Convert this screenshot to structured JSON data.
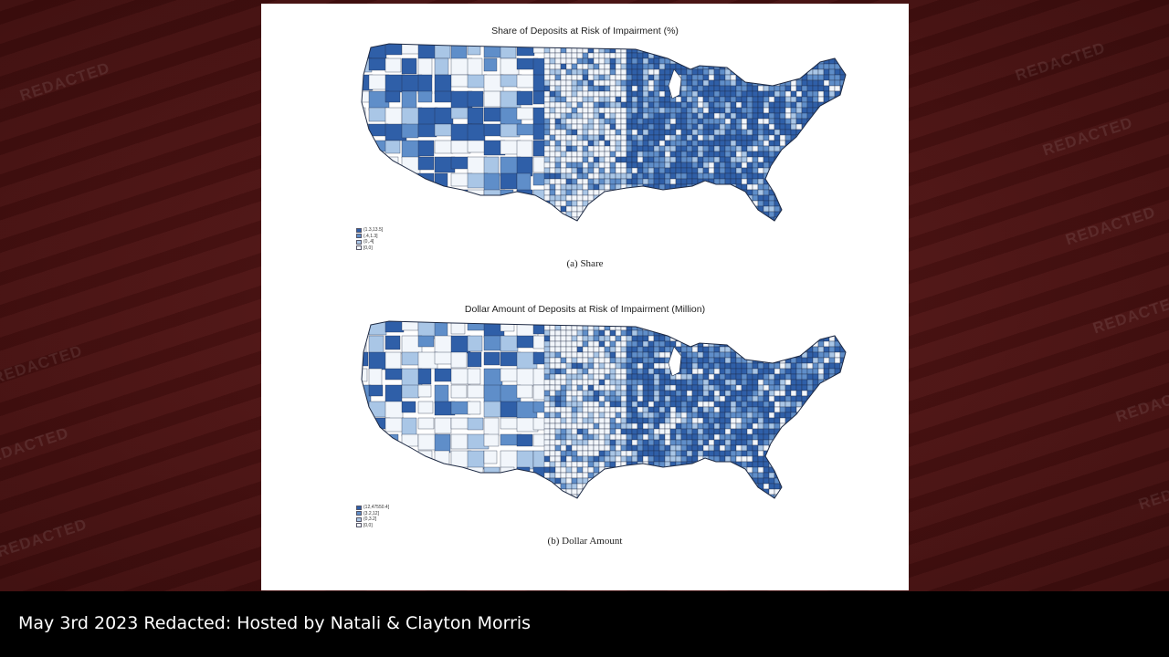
{
  "watermark_text": "REDACTED",
  "colors": {
    "background": "#4a1212",
    "bottom_bar": "#000000",
    "bottom_text": "#ffffff",
    "map_border": "#1e2a44",
    "legend_colors": [
      "#2f5fa8",
      "#5f8ec9",
      "#a9c6e6",
      "#f2f6fb"
    ]
  },
  "figure": {
    "maps": [
      {
        "title": "Share of Deposits at Risk of Impairment (%)",
        "caption": "(a)   Share",
        "legend": [
          "(1.3,13.5]",
          "(.4,1.3]",
          "(0,.4]",
          "[0,0]"
        ]
      },
      {
        "title": "Dollar Amount of Deposits at Risk of Impairment (Million)",
        "caption": "(b) Dollar Amount",
        "legend": [
          "(12,47550.4]",
          "(3.2,12]",
          "(0,3.2]",
          "[0,0]"
        ]
      }
    ]
  },
  "bottom_bar": {
    "text": "May 3rd 2023 Redacted: Hosted by Natali & Clayton Morris"
  }
}
